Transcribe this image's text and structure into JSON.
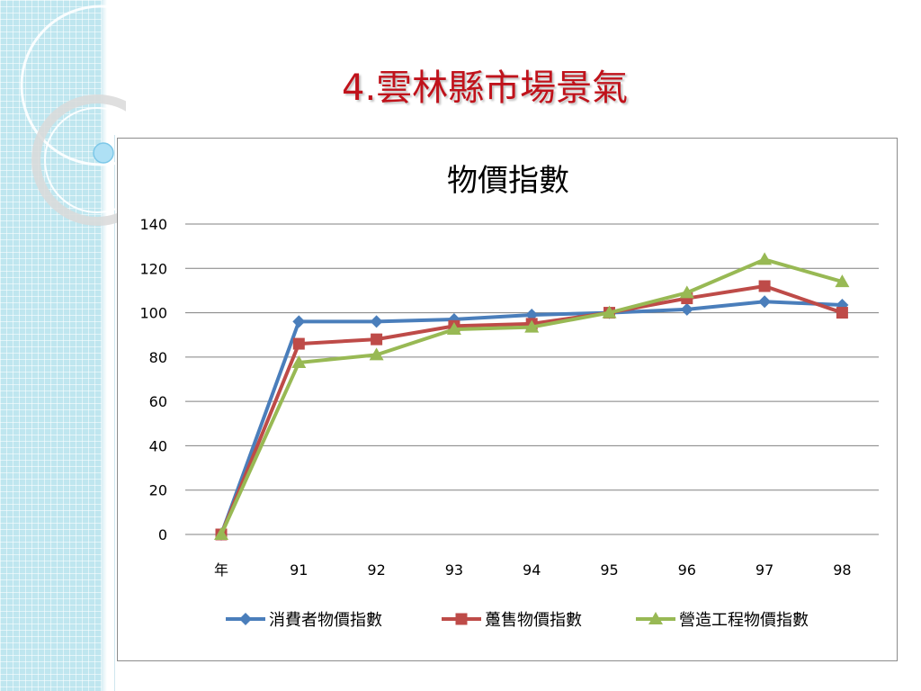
{
  "slide": {
    "title": "4.雲林縣市場景氣"
  },
  "chart_data": {
    "type": "line",
    "title": "物價指數",
    "categories": [
      "年",
      "91",
      "92",
      "93",
      "94",
      "95",
      "96",
      "97",
      "98"
    ],
    "ylim": [
      0,
      140
    ],
    "yticks": [
      0,
      20,
      40,
      60,
      80,
      100,
      120,
      140
    ],
    "grid": true,
    "legend_position": "bottom",
    "series": [
      {
        "name": "消費者物價指數",
        "color": "#4a7ebb",
        "marker": "diamond",
        "values": [
          0,
          96,
          96,
          97,
          99,
          100,
          101.5,
          105,
          103.5
        ]
      },
      {
        "name": "躉售物價指數",
        "color": "#be4b48",
        "marker": "square",
        "values": [
          0,
          86,
          88,
          94,
          95,
          100,
          106.5,
          112,
          100
        ]
      },
      {
        "name": "營造工程物價指數",
        "color": "#98b954",
        "marker": "triangle",
        "values": [
          0,
          77.5,
          81,
          92.5,
          93.5,
          100,
          109,
          124,
          114
        ]
      }
    ]
  }
}
